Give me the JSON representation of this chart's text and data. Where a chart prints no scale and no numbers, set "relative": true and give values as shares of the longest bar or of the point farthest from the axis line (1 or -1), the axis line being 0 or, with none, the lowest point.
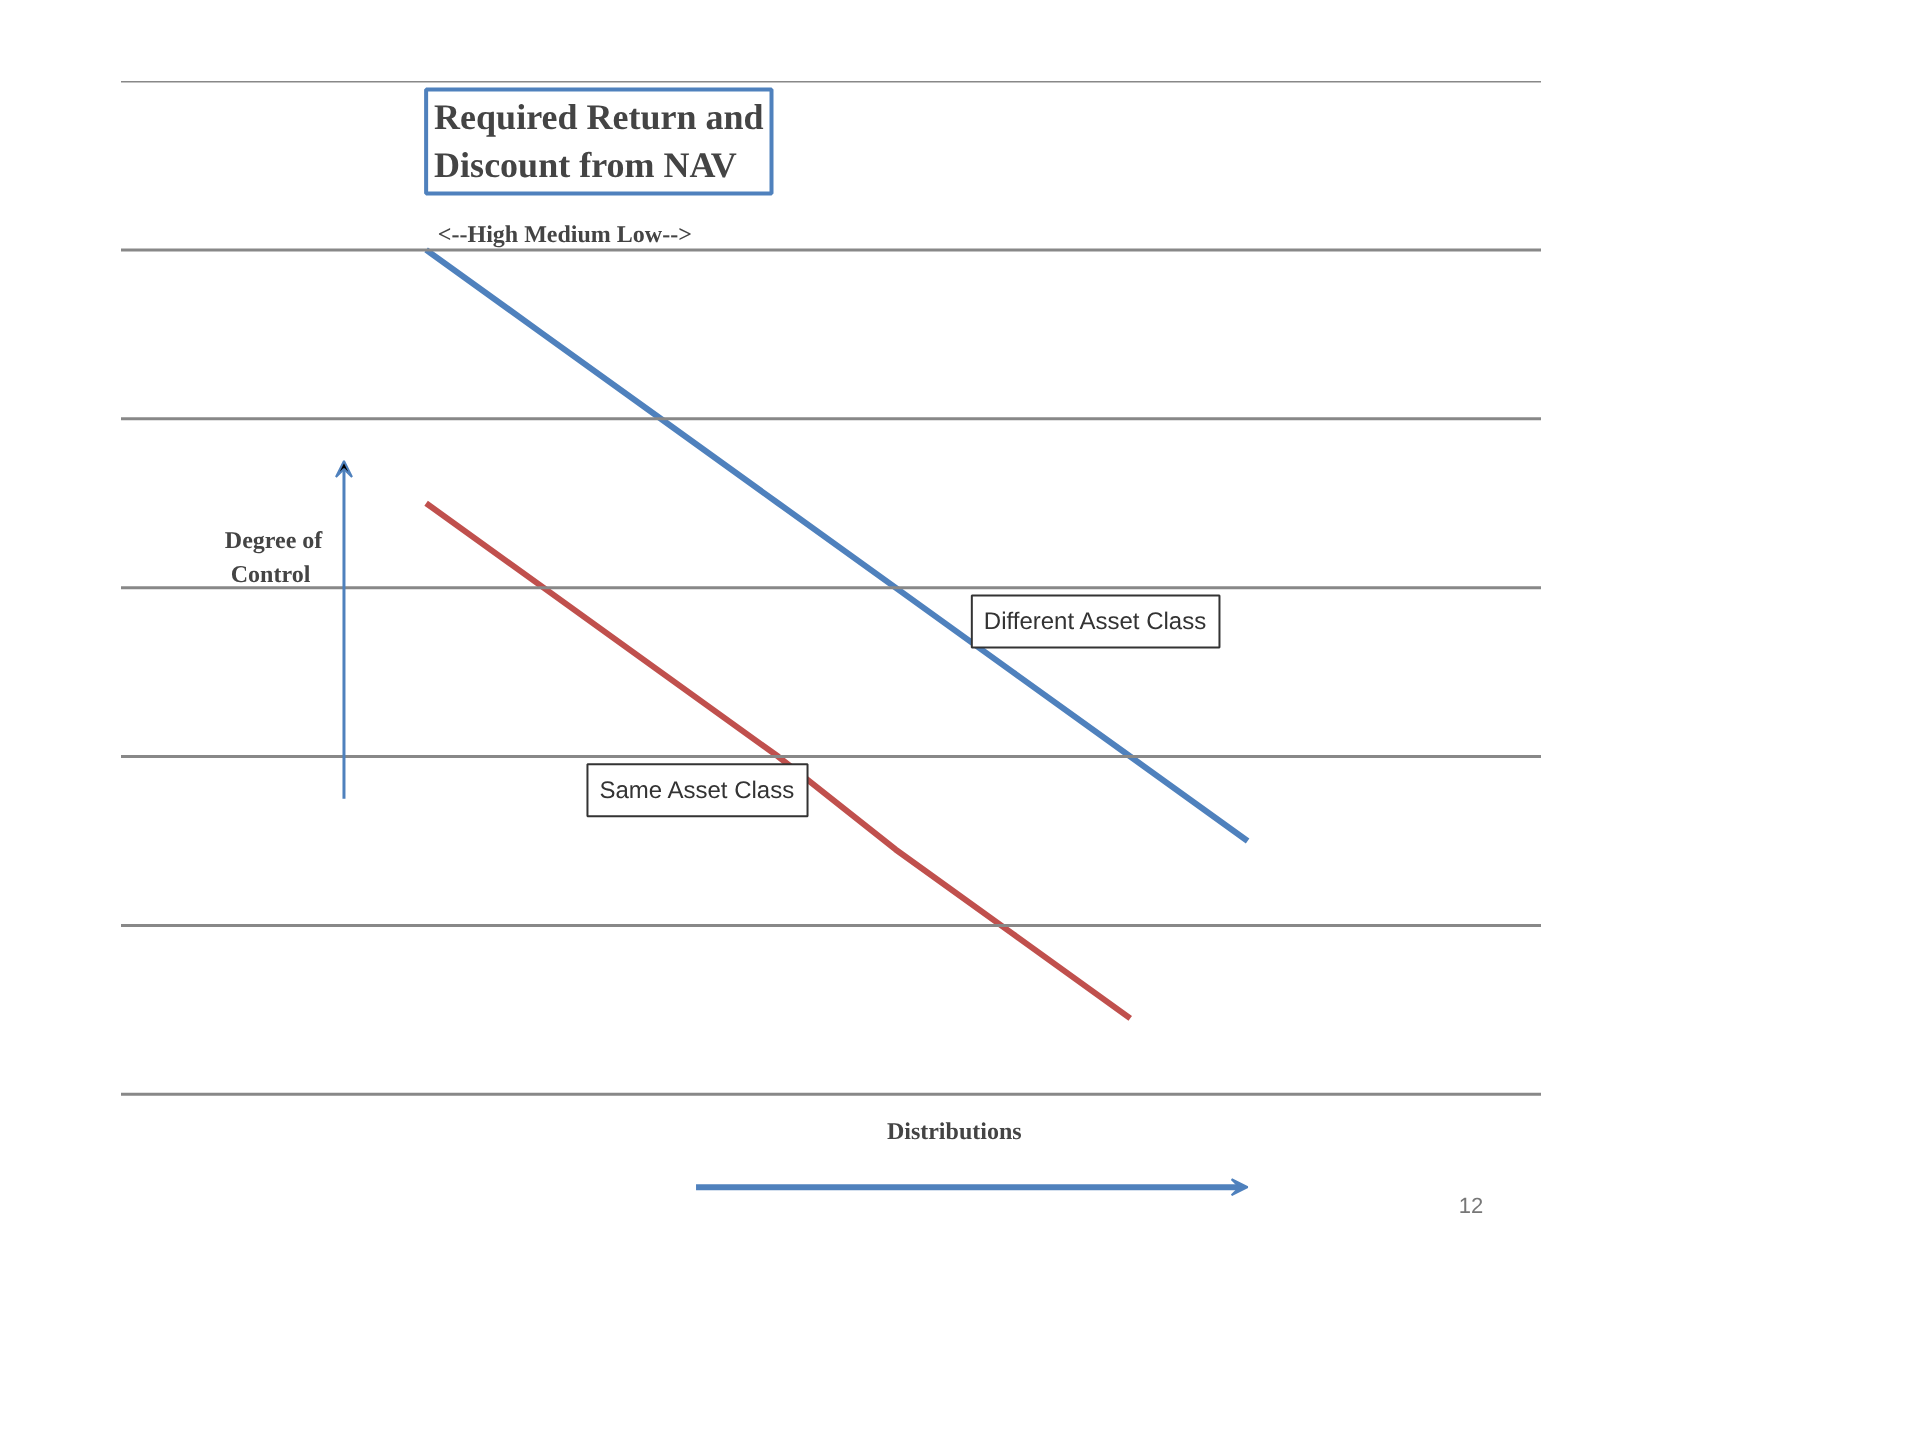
{
  "chart_data": {
    "type": "line",
    "title": "Required Return and Discount from NAV",
    "subtitle": "<--High   Medium   Low-->",
    "xlabel": "Distributions",
    "ylabel": "Degree of Control",
    "relative": true,
    "grid": "y",
    "categories": [
      null,
      null,
      null,
      null,
      null,
      null,
      null,
      null
    ],
    "series": [
      {
        "name": "Different Asset Class",
        "color": "#4f81bd",
        "values": [
          1,
          0.9,
          0.8,
          0.7,
          0.6,
          0.5,
          0.4,
          0.3
        ]
      },
      {
        "name": "Same Asset Class",
        "color": "#c0504d",
        "values": [
          0.7,
          0.6,
          0.5,
          0.4,
          0.29,
          0.19,
          0.09,
          null
        ]
      }
    ],
    "annotations": [
      "12"
    ]
  }
}
